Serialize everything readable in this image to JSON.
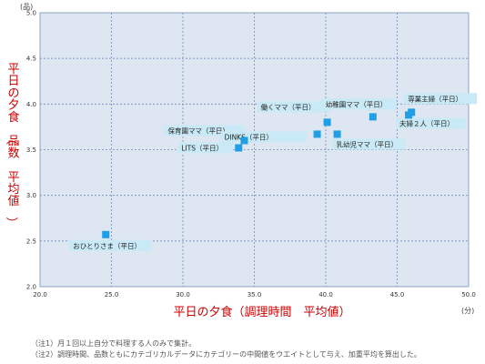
{
  "chart_data": {
    "type": "scatter",
    "title": "",
    "xlabel": "平日の夕食（調理時間　平均値）",
    "ylabel": "平日の夕食（品数　平均値）",
    "x_unit": "(分)",
    "y_unit": "(品)",
    "xlim": [
      20.0,
      50.0
    ],
    "ylim": [
      2.0,
      5.0
    ],
    "x_ticks": [
      "20.0",
      "25.0",
      "30.0",
      "35.0",
      "40.0",
      "45.0",
      "50.0"
    ],
    "y_ticks": [
      "2.0",
      "2.5",
      "3.0",
      "3.5",
      "4.0",
      "4.5",
      "5.0"
    ],
    "grid": true,
    "colors": {
      "plot_bg": "#dde6f1",
      "grid": "#6f8fbf",
      "point": "#1e9fe6",
      "label_bg": "#c9e9f6",
      "axis_title": "#cc0000"
    },
    "series": [
      {
        "points": [
          {
            "label": "おひとりさま（平日）",
            "x": 24.6,
            "y": 2.57
          },
          {
            "label": "LITS（平日）",
            "x": 33.9,
            "y": 3.52
          },
          {
            "label": "保育園ママ（平日）",
            "x": 34.3,
            "y": 3.6
          },
          {
            "label": "DINKS（平日）",
            "x": 39.4,
            "y": 3.67
          },
          {
            "label": "働くママ（平日）",
            "x": 40.1,
            "y": 3.8
          },
          {
            "label": "乳幼児ママ（平日）",
            "x": 40.8,
            "y": 3.67
          },
          {
            "label": "幼稚園ママ（平日）",
            "x": 43.3,
            "y": 3.86
          },
          {
            "label": "夫婦２人（平日）",
            "x": 45.8,
            "y": 3.88
          },
          {
            "label": "専業主婦（平日）",
            "x": 46.0,
            "y": 3.91
          }
        ]
      }
    ]
  },
  "notes": [
    "（注1）月１回以上自分で料理する人のみで集計。",
    "（注2）調理時間、品数ともにカテゴリカルデータにカテゴリーの中間値をウエイトとして与え、加重平均を算出した。"
  ]
}
